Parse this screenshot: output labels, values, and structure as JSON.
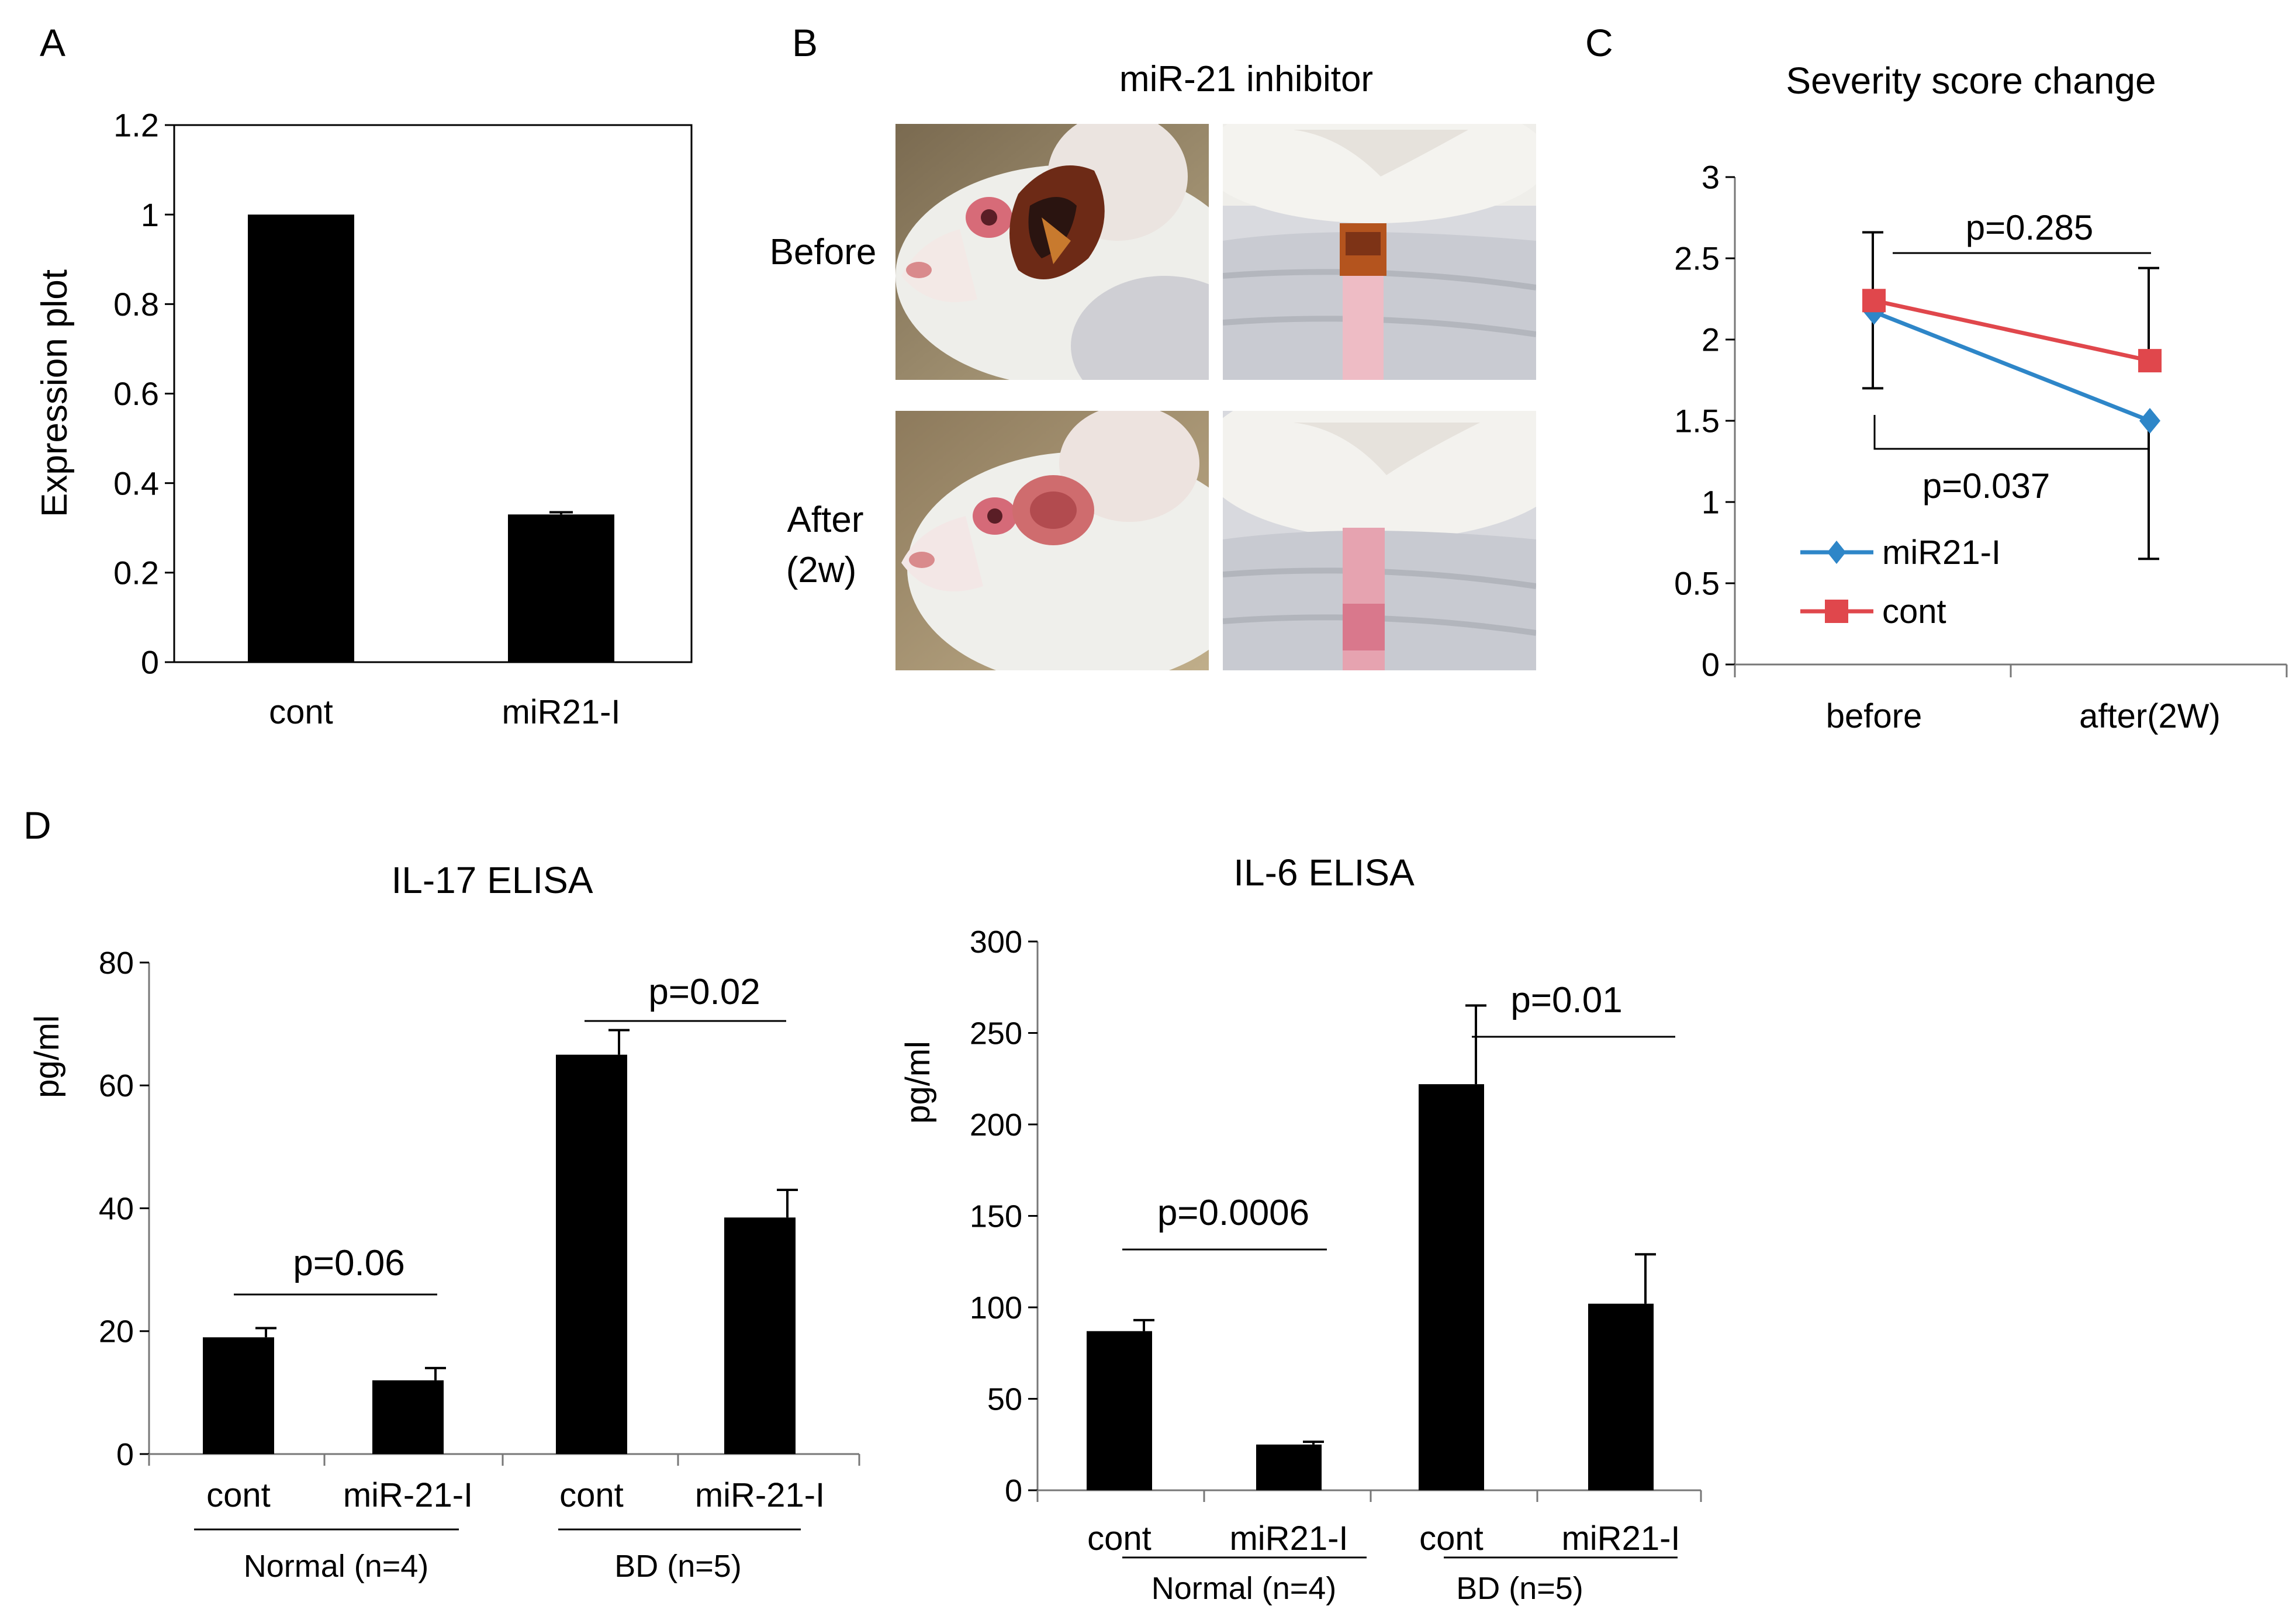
{
  "panels": {
    "A": "A",
    "B": "B",
    "C": "C",
    "D": "D"
  },
  "colors": {
    "bar": "#000000",
    "series_mir21": "#2e86c8",
    "series_cont": "#e0474c"
  },
  "photos": {
    "title": "miR-21 inhibitor",
    "row_before": "Before",
    "row_after_1": "After",
    "row_after_2": "(2w)"
  },
  "chart_data": [
    {
      "id": "A",
      "type": "bar",
      "title": "",
      "ylabel": "Expression plot",
      "xlabel": "",
      "categories": [
        "cont",
        "miR21-I"
      ],
      "values": [
        1.0,
        0.33
      ],
      "errors": [
        0,
        0.005
      ],
      "ylim": [
        0,
        1.2
      ],
      "yticks": [
        "0",
        "0.2",
        "0.4",
        "0.6",
        "0.8",
        "1",
        "1.2"
      ],
      "frame": "box",
      "grid": false
    },
    {
      "id": "C",
      "type": "line",
      "title": "Severity score change",
      "ylabel": "",
      "xlabel": "",
      "categories": [
        "before",
        "after(2W)"
      ],
      "series": [
        {
          "name": "miR21-I",
          "values": [
            2.17,
            1.5
          ],
          "errors": [
            0.47,
            0.85
          ],
          "marker": "diamond"
        },
        {
          "name": "cont",
          "values": [
            2.24,
            1.87
          ],
          "errors": [
            0.42,
            0.57
          ],
          "marker": "square"
        }
      ],
      "ylim": [
        0,
        3
      ],
      "yticks": [
        "0",
        "0.5",
        "1",
        "1.5",
        "2",
        "2.5",
        "3"
      ],
      "annotations": [
        "p=0.285",
        "p=0.037"
      ],
      "legend": "bottom-left",
      "grid": false
    },
    {
      "id": "D1",
      "type": "bar",
      "title": "IL-17 ELISA",
      "ylabel": "pg/ml",
      "categories": [
        "cont",
        "miR-21-I",
        "cont",
        "miR-21-I"
      ],
      "groups": [
        "Normal (n=4)",
        "BD (n=5)"
      ],
      "values": [
        19,
        12,
        65,
        38.5
      ],
      "errors": [
        1.5,
        2,
        4,
        4.5
      ],
      "ylim": [
        0,
        80
      ],
      "yticks": [
        "0",
        "20",
        "40",
        "60",
        "80"
      ],
      "annotations": [
        "p=0.06",
        "p=0.02"
      ],
      "grid": false
    },
    {
      "id": "D2",
      "type": "bar",
      "title": "IL-6 ELISA",
      "ylabel": "pg/ml",
      "categories": [
        "cont",
        "miR21-I",
        "cont",
        "miR21-I"
      ],
      "groups": [
        "Normal (n=4)",
        "BD (n=5)"
      ],
      "values": [
        87,
        25,
        222,
        102
      ],
      "errors": [
        6,
        1.5,
        43,
        27
      ],
      "ylim": [
        0,
        300
      ],
      "yticks": [
        "0",
        "50",
        "100",
        "150",
        "200",
        "250",
        "300"
      ],
      "annotations": [
        "p=0.0006",
        "p=0.01"
      ],
      "grid": false
    }
  ]
}
